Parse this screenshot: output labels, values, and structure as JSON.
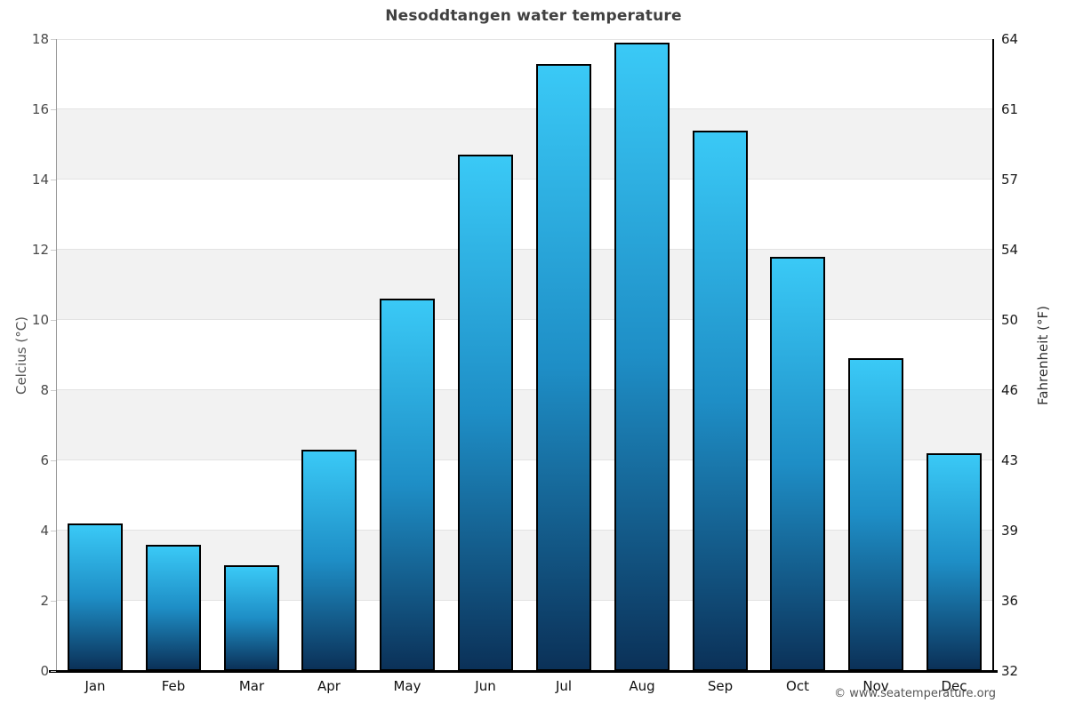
{
  "chart_data": {
    "type": "bar",
    "title": "Nesoddtangen water temperature",
    "categories": [
      "Jan",
      "Feb",
      "Mar",
      "Apr",
      "May",
      "Jun",
      "Jul",
      "Aug",
      "Sep",
      "Oct",
      "Nov",
      "Dec"
    ],
    "values": [
      4.2,
      3.6,
      3.0,
      6.3,
      10.6,
      14.7,
      17.3,
      17.9,
      15.4,
      11.8,
      8.9,
      6.2
    ],
    "ylabel_left": "Celcius (°C)",
    "ylabel_right": "Fahrenheit (°F)",
    "ylim": [
      0,
      18
    ],
    "yticks_celsius": [
      0,
      2,
      4,
      6,
      8,
      10,
      12,
      14,
      16,
      18
    ],
    "yticks_fahrenheit": [
      32,
      36,
      39,
      43,
      46,
      50,
      54,
      57,
      61,
      64
    ],
    "grid": "alternating-bands",
    "legend": "none",
    "attribution": "© www.seatemperature.org",
    "colors": {
      "bar_gradient_top": "#3ac9f6",
      "bar_gradient_mid": "#1e8ec6",
      "bar_gradient_bottom": "#0b3158",
      "bar_border": "#000000",
      "band_fill": "#f2f2f2",
      "gridline": "#e3e3e3",
      "title_text": "#404040"
    }
  }
}
